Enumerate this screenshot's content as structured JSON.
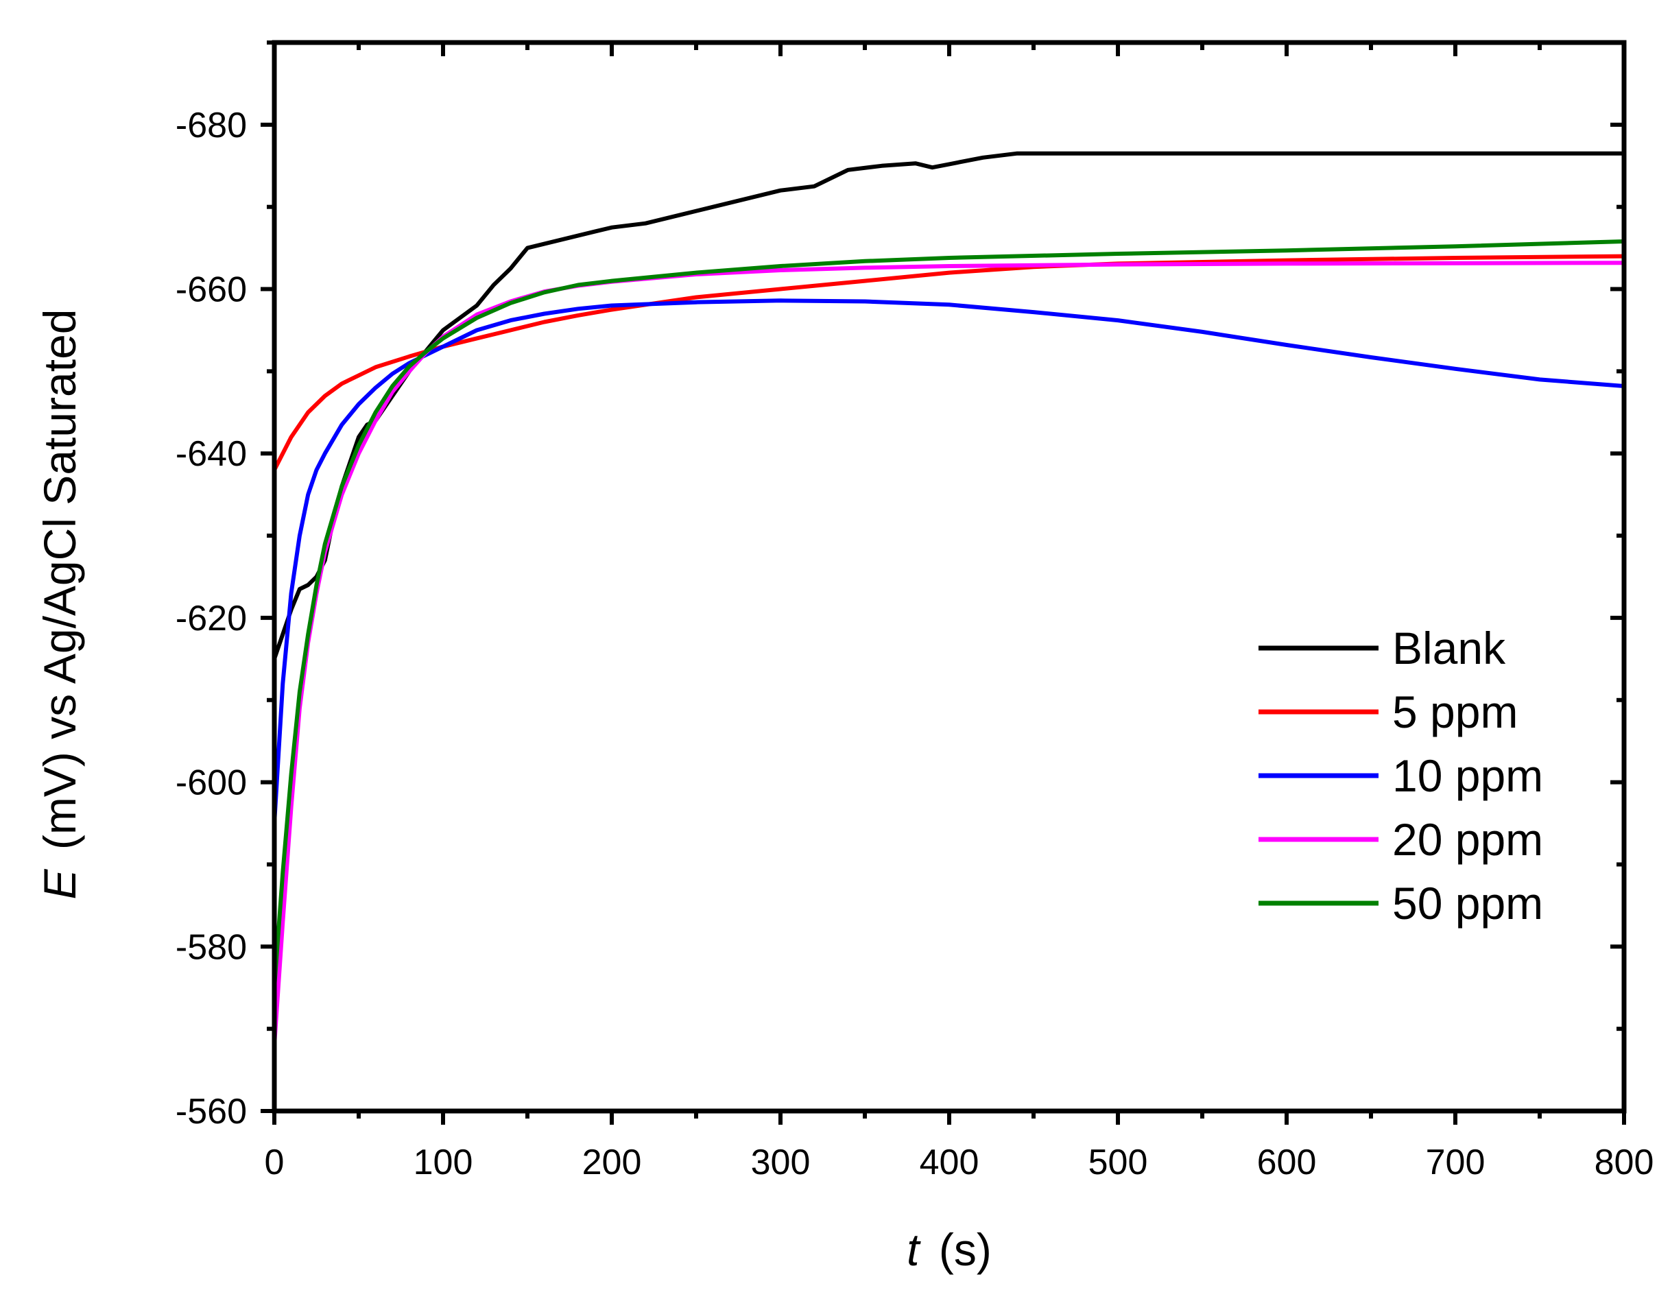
{
  "chart_data": {
    "type": "line",
    "x_axis": {
      "label_italic": "t",
      "label_unit": "(s)",
      "range": [
        0,
        800
      ],
      "ticks": [
        0,
        100,
        200,
        300,
        400,
        500,
        600,
        700,
        800
      ],
      "tick_labels": [
        "0",
        "100",
        "200",
        "300",
        "400",
        "500",
        "600",
        "700",
        "800"
      ],
      "minor_step": 50
    },
    "y_axis": {
      "label_italic": "E",
      "label_rest": "(mV) vs Ag/AgCl Saturated",
      "range": [
        -560,
        -690
      ],
      "inverted": true,
      "ticks": [
        -560,
        -580,
        -600,
        -620,
        -640,
        -660,
        -680
      ],
      "tick_labels": [
        "-560",
        "-580",
        "-600",
        "-620",
        "-640",
        "-660",
        "-680"
      ],
      "minor_step": 10
    },
    "grid": false,
    "legend_position": "lower-right",
    "series": [
      {
        "name": "Blank",
        "color": "#000000",
        "points": [
          [
            0,
            -615
          ],
          [
            5,
            -618
          ],
          [
            10,
            -621
          ],
          [
            15,
            -623.5
          ],
          [
            20,
            -624
          ],
          [
            25,
            -625
          ],
          [
            30,
            -627
          ],
          [
            35,
            -632
          ],
          [
            40,
            -636
          ],
          [
            45,
            -639
          ],
          [
            50,
            -642
          ],
          [
            55,
            -643.5
          ],
          [
            60,
            -644
          ],
          [
            70,
            -647
          ],
          [
            80,
            -650
          ],
          [
            90,
            -652.5
          ],
          [
            100,
            -655
          ],
          [
            110,
            -656.5
          ],
          [
            120,
            -658
          ],
          [
            130,
            -660.5
          ],
          [
            140,
            -662.5
          ],
          [
            150,
            -665
          ],
          [
            160,
            -665.5
          ],
          [
            170,
            -666
          ],
          [
            180,
            -666.5
          ],
          [
            190,
            -667
          ],
          [
            200,
            -667.5
          ],
          [
            220,
            -668
          ],
          [
            240,
            -669
          ],
          [
            260,
            -670
          ],
          [
            280,
            -671
          ],
          [
            300,
            -672
          ],
          [
            320,
            -672.5
          ],
          [
            340,
            -674.5
          ],
          [
            360,
            -675
          ],
          [
            380,
            -675.3
          ],
          [
            390,
            -674.8
          ],
          [
            400,
            -675.2
          ],
          [
            420,
            -676
          ],
          [
            440,
            -676.5
          ],
          [
            460,
            -676.5
          ],
          [
            800,
            -676.5
          ]
        ]
      },
      {
        "name": "5 ppm",
        "color": "#ff0000",
        "points": [
          [
            0,
            -638
          ],
          [
            10,
            -642
          ],
          [
            20,
            -645
          ],
          [
            30,
            -647
          ],
          [
            40,
            -648.5
          ],
          [
            50,
            -649.5
          ],
          [
            60,
            -650.5
          ],
          [
            80,
            -651.8
          ],
          [
            100,
            -653
          ],
          [
            120,
            -654
          ],
          [
            140,
            -655
          ],
          [
            160,
            -656
          ],
          [
            180,
            -656.8
          ],
          [
            200,
            -657.5
          ],
          [
            250,
            -659
          ],
          [
            300,
            -660
          ],
          [
            350,
            -661
          ],
          [
            400,
            -662
          ],
          [
            450,
            -662.7
          ],
          [
            500,
            -663.1
          ],
          [
            600,
            -663.5
          ],
          [
            700,
            -663.8
          ],
          [
            800,
            -664
          ]
        ]
      },
      {
        "name": "10 ppm",
        "color": "#0000ff",
        "points": [
          [
            0,
            -595
          ],
          [
            5,
            -612
          ],
          [
            10,
            -623
          ],
          [
            15,
            -630
          ],
          [
            20,
            -635
          ],
          [
            25,
            -638
          ],
          [
            30,
            -640
          ],
          [
            40,
            -643.5
          ],
          [
            50,
            -646
          ],
          [
            60,
            -648
          ],
          [
            70,
            -649.7
          ],
          [
            80,
            -651
          ],
          [
            100,
            -653
          ],
          [
            120,
            -655
          ],
          [
            140,
            -656.2
          ],
          [
            160,
            -657
          ],
          [
            180,
            -657.6
          ],
          [
            200,
            -658
          ],
          [
            250,
            -658.4
          ],
          [
            300,
            -658.6
          ],
          [
            350,
            -658.5
          ],
          [
            400,
            -658.1
          ],
          [
            450,
            -657.2
          ],
          [
            500,
            -656.2
          ],
          [
            550,
            -654.8
          ],
          [
            600,
            -653.2
          ],
          [
            650,
            -651.7
          ],
          [
            700,
            -650.3
          ],
          [
            750,
            -649
          ],
          [
            800,
            -648.2
          ]
        ]
      },
      {
        "name": "20 ppm",
        "color": "#ff00ff",
        "points": [
          [
            0,
            -568
          ],
          [
            5,
            -583
          ],
          [
            10,
            -597
          ],
          [
            15,
            -609
          ],
          [
            20,
            -617
          ],
          [
            25,
            -623
          ],
          [
            30,
            -628
          ],
          [
            40,
            -635
          ],
          [
            50,
            -640
          ],
          [
            60,
            -644
          ],
          [
            70,
            -647.5
          ],
          [
            80,
            -650
          ],
          [
            90,
            -652.3
          ],
          [
            100,
            -654.2
          ],
          [
            120,
            -656.9
          ],
          [
            140,
            -658.5
          ],
          [
            160,
            -659.7
          ],
          [
            180,
            -660.4
          ],
          [
            200,
            -660.9
          ],
          [
            250,
            -661.8
          ],
          [
            300,
            -662.3
          ],
          [
            350,
            -662.6
          ],
          [
            400,
            -662.8
          ],
          [
            500,
            -663
          ],
          [
            600,
            -663.1
          ],
          [
            800,
            -663.2
          ]
        ]
      },
      {
        "name": "50 ppm",
        "color": "#008000",
        "points": [
          [
            0,
            -575
          ],
          [
            5,
            -589
          ],
          [
            10,
            -601
          ],
          [
            15,
            -611
          ],
          [
            20,
            -618
          ],
          [
            25,
            -624
          ],
          [
            30,
            -629
          ],
          [
            40,
            -636
          ],
          [
            50,
            -641
          ],
          [
            60,
            -645
          ],
          [
            70,
            -648.2
          ],
          [
            80,
            -650.6
          ],
          [
            90,
            -652.4
          ],
          [
            100,
            -654
          ],
          [
            120,
            -656.5
          ],
          [
            140,
            -658.3
          ],
          [
            160,
            -659.6
          ],
          [
            180,
            -660.5
          ],
          [
            200,
            -661
          ],
          [
            250,
            -662
          ],
          [
            300,
            -662.8
          ],
          [
            350,
            -663.4
          ],
          [
            400,
            -663.8
          ],
          [
            500,
            -664.3
          ],
          [
            600,
            -664.7
          ],
          [
            700,
            -665.2
          ],
          [
            800,
            -665.8
          ]
        ]
      }
    ]
  }
}
